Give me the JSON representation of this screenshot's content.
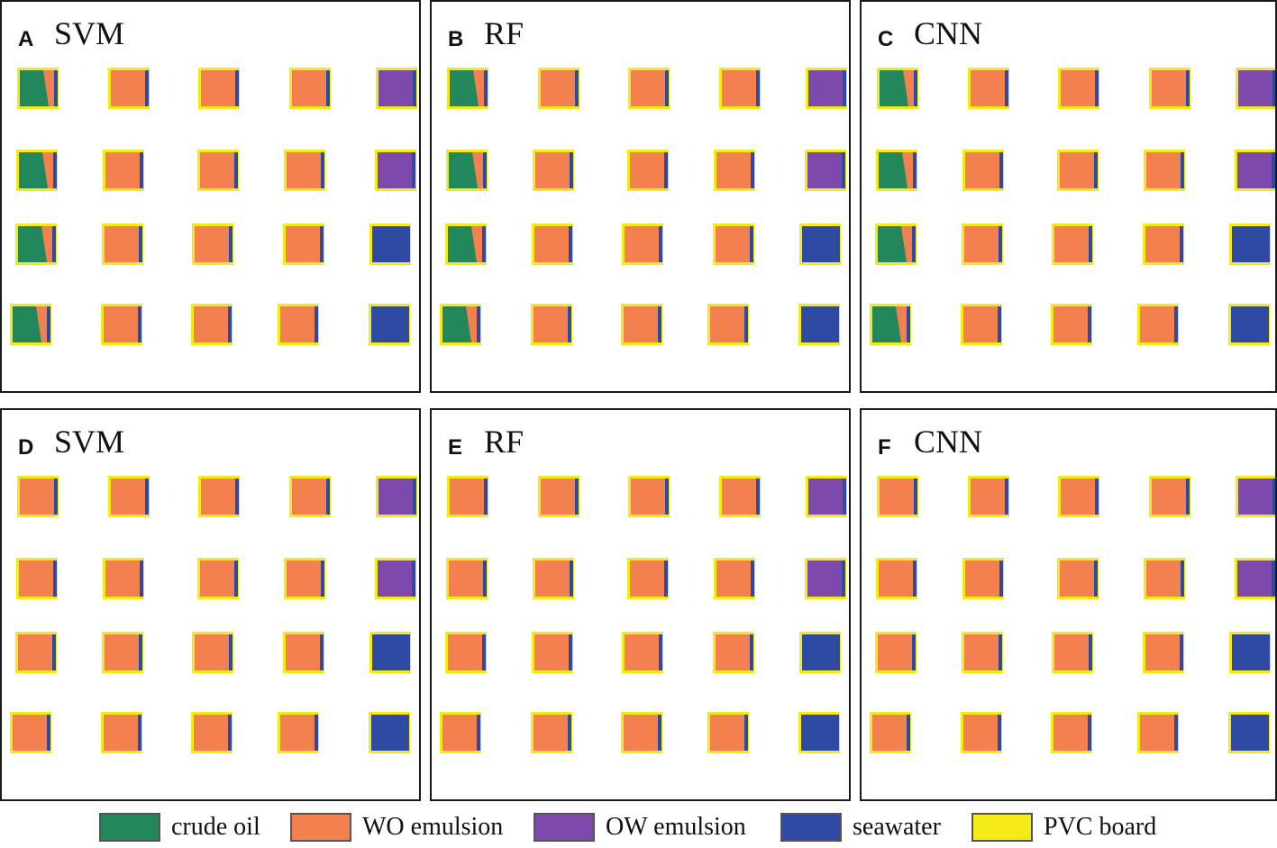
{
  "colors": {
    "crude_oil": "#22875a",
    "wo_emulsion": "#f2814f",
    "ow_emulsion": "#7d4aab",
    "seawater": "#2f4aa3",
    "pvc_board": "#f4ea17"
  },
  "panels": [
    {
      "letter": "A",
      "title": "SVM",
      "grid": [
        [
          "crude",
          "wo",
          "wo",
          "wo",
          "ow"
        ],
        [
          "crude",
          "wo",
          "wo",
          "wo",
          "ow"
        ],
        [
          "crude",
          "wo",
          "wo",
          "wo",
          "sea"
        ],
        [
          "crude",
          "wo",
          "wo",
          "wo",
          "sea"
        ]
      ]
    },
    {
      "letter": "B",
      "title": "RF",
      "grid": [
        [
          "crude",
          "wo",
          "wo",
          "wo",
          "ow"
        ],
        [
          "crude",
          "wo",
          "wo",
          "wo",
          "ow"
        ],
        [
          "crude",
          "wo",
          "wo",
          "wo",
          "sea"
        ],
        [
          "crude",
          "wo",
          "wo",
          "wo",
          "sea"
        ]
      ]
    },
    {
      "letter": "C",
      "title": "CNN",
      "grid": [
        [
          "crude",
          "wo",
          "wo",
          "wo",
          "ow"
        ],
        [
          "crude",
          "wo",
          "wo",
          "wo",
          "ow"
        ],
        [
          "crude",
          "wo",
          "wo",
          "wo",
          "sea"
        ],
        [
          "crude",
          "wo",
          "wo",
          "wo",
          "sea"
        ]
      ]
    },
    {
      "letter": "D",
      "title": "SVM",
      "grid": [
        [
          "wo",
          "wo",
          "wo",
          "wo",
          "ow"
        ],
        [
          "wo",
          "wo",
          "wo",
          "wo",
          "ow"
        ],
        [
          "wo",
          "wo",
          "wo",
          "wo",
          "sea"
        ],
        [
          "wo",
          "wo",
          "wo",
          "wo",
          "sea"
        ]
      ]
    },
    {
      "letter": "E",
      "title": "RF",
      "grid": [
        [
          "wo",
          "wo",
          "wo",
          "wo",
          "ow"
        ],
        [
          "wo",
          "wo",
          "wo",
          "wo",
          "ow"
        ],
        [
          "wo",
          "wo",
          "wo",
          "wo",
          "sea"
        ],
        [
          "wo",
          "wo",
          "wo",
          "wo",
          "sea"
        ]
      ]
    },
    {
      "letter": "F",
      "title": "CNN",
      "grid": [
        [
          "wo",
          "wo",
          "wo",
          "wo",
          "ow"
        ],
        [
          "wo",
          "wo",
          "wo",
          "wo",
          "ow"
        ],
        [
          "wo",
          "wo",
          "wo",
          "wo",
          "sea"
        ],
        [
          "wo",
          "wo",
          "wo",
          "wo",
          "sea"
        ]
      ]
    }
  ],
  "legend": [
    {
      "key": "crude_oil",
      "label": "crude oil"
    },
    {
      "key": "wo_emulsion",
      "label": "WO emulsion"
    },
    {
      "key": "ow_emulsion",
      "label": "OW emulsion"
    },
    {
      "key": "seawater",
      "label": "seawater"
    },
    {
      "key": "pvc_board",
      "label": "PVC board"
    }
  ]
}
